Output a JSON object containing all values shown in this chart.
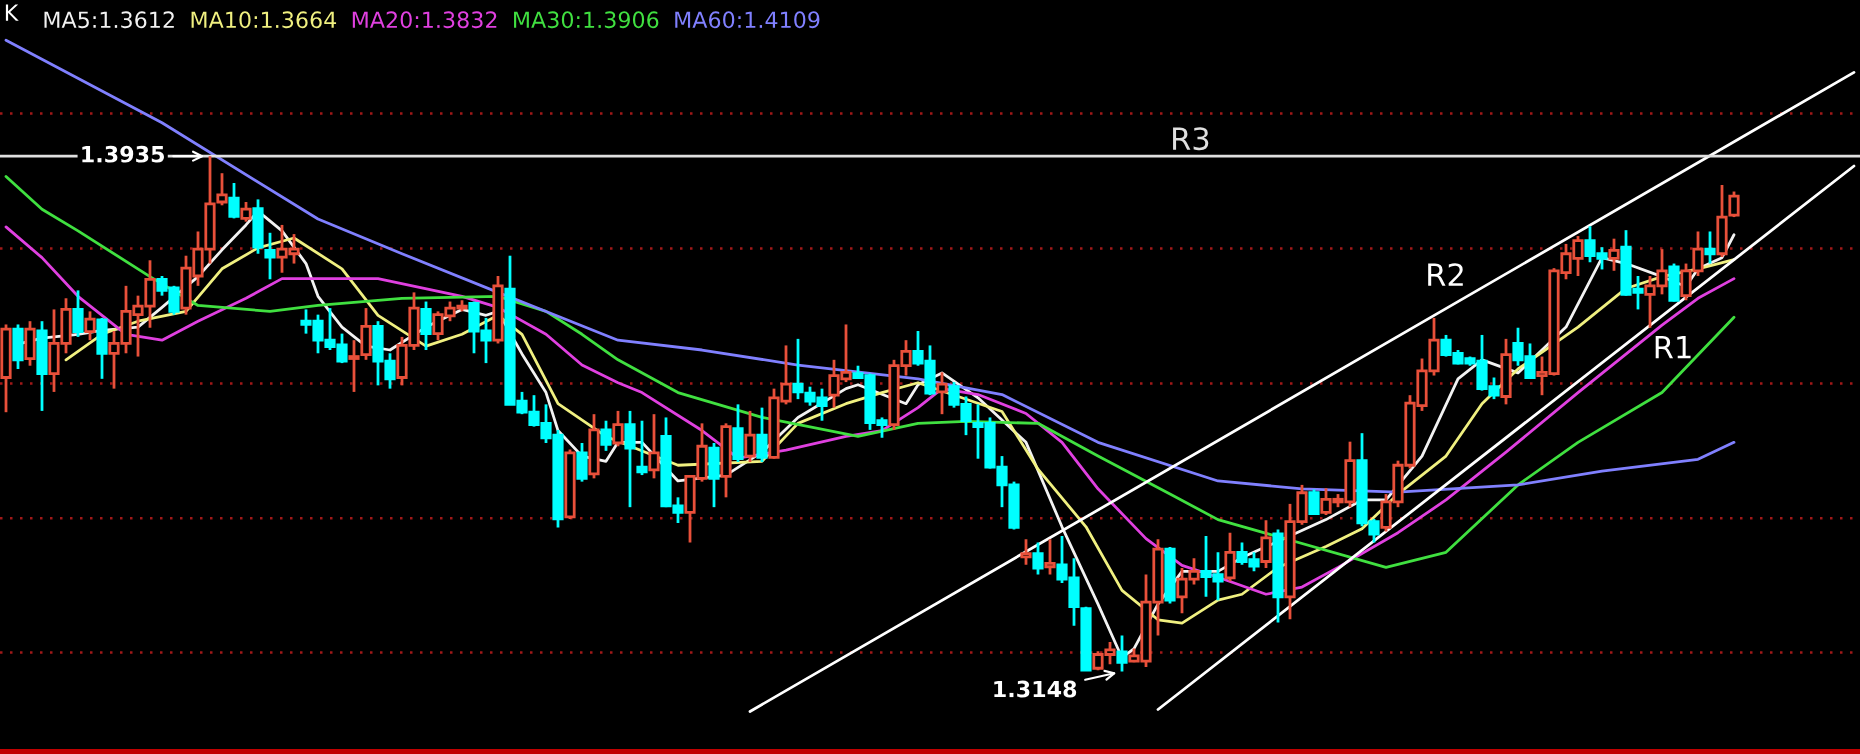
{
  "chart_data": {
    "type": "candlestick",
    "title": "K",
    "categories": [
      null,
      null,
      null,
      null,
      null,
      null,
      null,
      null,
      null,
      null,
      null,
      null,
      null,
      null,
      null,
      null,
      null,
      null,
      null,
      null,
      null,
      null,
      null,
      null,
      null,
      null,
      null,
      null,
      null,
      null,
      null,
      null,
      null,
      null,
      null,
      null,
      null,
      null,
      null,
      null,
      null,
      null,
      null,
      null,
      null,
      null,
      null,
      null,
      null,
      null,
      null,
      null,
      null,
      null,
      null,
      null,
      null,
      null,
      null,
      null,
      null,
      null,
      null,
      null,
      null,
      null,
      null,
      null,
      null,
      null,
      null,
      null,
      null,
      null,
      null,
      null,
      null,
      null,
      null,
      null,
      null,
      null,
      null,
      null,
      null,
      null,
      null,
      null,
      null,
      null,
      null,
      null,
      null,
      null,
      null,
      null,
      null,
      null,
      null,
      null,
      null,
      null,
      null,
      null,
      null,
      null,
      null,
      null,
      null,
      null,
      null,
      null,
      null,
      null,
      null,
      null,
      null,
      null,
      null,
      null,
      null,
      null,
      null,
      null,
      null,
      null,
      null,
      null,
      null,
      null,
      null,
      null,
      null,
      null,
      null,
      null,
      null,
      null,
      null,
      null,
      null,
      null,
      null,
      null,
      null,
      null,
      null,
      null,
      null,
      null,
      null,
      null,
      null,
      null,
      null
    ],
    "ohlc": [
      [
        1.3597,
        1.3678,
        1.3544,
        1.3671
      ],
      [
        1.3671,
        1.3678,
        1.361,
        1.3624
      ],
      [
        1.3626,
        1.3683,
        1.3615,
        1.3671
      ],
      [
        1.3668,
        1.3683,
        1.3546,
        1.3603
      ],
      [
        1.3603,
        1.3701,
        1.3575,
        1.3649
      ],
      [
        1.3649,
        1.3718,
        1.3634,
        1.3701
      ],
      [
        1.3701,
        1.373,
        1.3659,
        1.3667
      ],
      [
        1.3667,
        1.3698,
        1.3654,
        1.3686
      ],
      [
        1.3685,
        1.3688,
        1.3595,
        1.3634
      ],
      [
        1.3634,
        1.3668,
        1.358,
        1.3649
      ],
      [
        1.3649,
        1.3737,
        1.3634,
        1.3698
      ],
      [
        1.3693,
        1.3722,
        1.3629,
        1.3706
      ],
      [
        1.3706,
        1.3776,
        1.3673,
        1.3747
      ],
      [
        1.3747,
        1.3752,
        1.3722,
        1.373
      ],
      [
        1.3734,
        1.3737,
        1.3693,
        1.3698
      ],
      [
        1.3703,
        1.3783,
        1.3693,
        1.3764
      ],
      [
        1.3752,
        1.382,
        1.3737,
        1.3793
      ],
      [
        1.3793,
        1.3935,
        1.3771,
        1.3862
      ],
      [
        1.3865,
        1.3909,
        1.386,
        1.3876
      ],
      [
        1.3871,
        1.3894,
        1.384,
        1.3843
      ],
      [
        1.384,
        1.3865,
        1.3835,
        1.3854
      ],
      [
        1.3855,
        1.3869,
        1.3786,
        1.3796
      ],
      [
        1.3791,
        1.3818,
        1.3747,
        1.3781
      ],
      [
        1.3781,
        1.383,
        1.3757,
        1.3793
      ],
      [
        1.3786,
        1.3816,
        1.3771,
        1.3793
      ],
      [
        1.3683,
        1.3701,
        1.3664,
        1.3678
      ],
      [
        1.3683,
        1.3693,
        1.3634,
        1.3654
      ],
      [
        1.3654,
        1.3703,
        1.3639,
        1.3644
      ],
      [
        1.3647,
        1.3664,
        1.3619,
        1.3622
      ],
      [
        1.3626,
        1.3654,
        1.3575,
        1.3629
      ],
      [
        1.3632,
        1.3703,
        1.3624,
        1.3675
      ],
      [
        1.3675,
        1.3683,
        1.3585,
        1.3622
      ],
      [
        1.3622,
        1.3634,
        1.358,
        1.3595
      ],
      [
        1.3597,
        1.3659,
        1.3585,
        1.3646
      ],
      [
        1.3646,
        1.3727,
        1.3639,
        1.3703
      ],
      [
        1.3701,
        1.3713,
        1.3639,
        1.3664
      ],
      [
        1.3664,
        1.3698,
        1.3654,
        1.3693
      ],
      [
        1.3691,
        1.3713,
        1.3683,
        1.3703
      ],
      [
        1.3703,
        1.3715,
        1.3698,
        1.3706
      ],
      [
        1.371,
        1.3713,
        1.3634,
        1.3668
      ],
      [
        1.3668,
        1.3688,
        1.3619,
        1.3654
      ],
      [
        1.3654,
        1.3752,
        1.3649,
        1.3737
      ],
      [
        1.3732,
        1.3783,
        1.3556,
        1.3556
      ],
      [
        1.3561,
        1.3575,
        1.3541,
        1.3544
      ],
      [
        1.3544,
        1.357,
        1.3522,
        1.3525
      ],
      [
        1.3527,
        1.3556,
        1.3497,
        1.3505
      ],
      [
        1.3509,
        1.3517,
        1.3368,
        1.3381
      ],
      [
        1.3384,
        1.3487,
        1.3381,
        1.3482
      ],
      [
        1.3482,
        1.3497,
        1.3438,
        1.3443
      ],
      [
        1.345,
        1.3541,
        1.3443,
        1.3517
      ],
      [
        1.3517,
        1.3531,
        1.3485,
        1.3495
      ],
      [
        1.3497,
        1.3546,
        1.3492,
        1.3525
      ],
      [
        1.3525,
        1.3546,
        1.3399,
        1.3489
      ],
      [
        1.346,
        1.3531,
        1.3448,
        1.3453
      ],
      [
        1.3456,
        1.3541,
        1.3443,
        1.3482
      ],
      [
        1.3507,
        1.3536,
        1.3399,
        1.3401
      ],
      [
        1.3401,
        1.3414,
        1.3375,
        1.3391
      ],
      [
        1.3391,
        1.3448,
        1.3345,
        1.3446
      ],
      [
        1.3443,
        1.3527,
        1.3438,
        1.3492
      ],
      [
        1.3489,
        1.3497,
        1.3399,
        1.3443
      ],
      [
        1.3446,
        1.3527,
        1.3414,
        1.3522
      ],
      [
        1.3519,
        1.3556,
        1.3468,
        1.3473
      ],
      [
        1.3477,
        1.3546,
        1.3468,
        1.3509
      ],
      [
        1.3509,
        1.3551,
        1.3468,
        1.3475
      ],
      [
        1.3475,
        1.358,
        1.3473,
        1.3566
      ],
      [
        1.3561,
        1.3646,
        1.3556,
        1.3587
      ],
      [
        1.3587,
        1.3656,
        1.3564,
        1.3575
      ],
      [
        1.3573,
        1.3583,
        1.3554,
        1.3561
      ],
      [
        1.3566,
        1.358,
        1.3531,
        1.3554
      ],
      [
        1.357,
        1.3624,
        1.3551,
        1.36
      ],
      [
        1.3595,
        1.3678,
        1.359,
        1.3605
      ],
      [
        1.3603,
        1.3615,
        1.3595,
        1.3597
      ],
      [
        1.36,
        1.3603,
        1.3517,
        1.3528
      ],
      [
        1.3531,
        1.3536,
        1.3505,
        1.3525
      ],
      [
        1.3525,
        1.3624,
        1.3517,
        1.3615
      ],
      [
        1.3615,
        1.3654,
        1.36,
        1.3637
      ],
      [
        1.3637,
        1.3668,
        1.3615,
        1.3619
      ],
      [
        1.3622,
        1.3646,
        1.357,
        1.3573
      ],
      [
        1.3575,
        1.3605,
        1.3541,
        1.3587
      ],
      [
        1.3583,
        1.359,
        1.3551,
        1.3556
      ],
      [
        1.3556,
        1.3568,
        1.3509,
        1.3531
      ],
      [
        1.3527,
        1.3556,
        1.3473,
        1.3522
      ],
      [
        1.3527,
        1.3536,
        1.3458,
        1.346
      ],
      [
        1.346,
        1.3477,
        1.3399,
        1.3433
      ],
      [
        1.3433,
        1.3438,
        1.3365,
        1.3368
      ],
      [
        1.3323,
        1.335,
        1.3311,
        1.3328
      ],
      [
        1.3328,
        1.3345,
        1.3296,
        1.3306
      ],
      [
        1.3308,
        1.335,
        1.3296,
        1.3313
      ],
      [
        1.3311,
        1.3355,
        1.3283,
        1.3289
      ],
      [
        1.3291,
        1.3321,
        1.3218,
        1.3247
      ],
      [
        1.3244,
        1.3247,
        1.3149,
        1.315
      ],
      [
        1.3153,
        1.3179,
        1.315,
        1.3174
      ],
      [
        1.3174,
        1.3193,
        1.3159,
        1.3181
      ],
      [
        1.3178,
        1.3203,
        1.3148,
        1.3162
      ],
      [
        1.3164,
        1.3183,
        1.3162,
        1.3172
      ],
      [
        1.3164,
        1.3296,
        1.3155,
        1.3254
      ],
      [
        1.3254,
        1.335,
        1.3203,
        1.3335
      ],
      [
        1.3335,
        1.3338,
        1.3252,
        1.3257
      ],
      [
        1.3262,
        1.3306,
        1.3237,
        1.3289
      ],
      [
        1.3289,
        1.3321,
        1.3281,
        1.3301
      ],
      [
        1.3301,
        1.3355,
        1.3262,
        1.3293
      ],
      [
        1.3296,
        1.333,
        1.3257,
        1.3286
      ],
      [
        1.3291,
        1.336,
        1.3286,
        1.333
      ],
      [
        1.333,
        1.3345,
        1.3311,
        1.3316
      ],
      [
        1.3319,
        1.333,
        1.3301,
        1.3309
      ],
      [
        1.3316,
        1.3379,
        1.3306,
        1.3352
      ],
      [
        1.3358,
        1.3365,
        1.3223,
        1.3262
      ],
      [
        1.3262,
        1.3404,
        1.3228,
        1.3377
      ],
      [
        1.3377,
        1.3433,
        1.3372,
        1.3421
      ],
      [
        1.3421,
        1.3426,
        1.3387,
        1.3389
      ],
      [
        1.3391,
        1.3428,
        1.3387,
        1.3411
      ],
      [
        1.3407,
        1.3419,
        1.3399,
        1.3411
      ],
      [
        1.3407,
        1.3499,
        1.3399,
        1.347
      ],
      [
        1.347,
        1.3512,
        1.337,
        1.3375
      ],
      [
        1.3377,
        1.3381,
        1.3345,
        1.3358
      ],
      [
        1.3368,
        1.3419,
        1.3362,
        1.3407
      ],
      [
        1.3407,
        1.347,
        1.3399,
        1.3463
      ],
      [
        1.3463,
        1.357,
        1.3458,
        1.3558
      ],
      [
        1.3554,
        1.3626,
        1.3546,
        1.3607
      ],
      [
        1.3607,
        1.3688,
        1.36,
        1.3654
      ],
      [
        1.3654,
        1.3662,
        1.3629,
        1.3632
      ],
      [
        1.3634,
        1.3639,
        1.3617,
        1.3619
      ],
      [
        1.3626,
        1.3629,
        1.3615,
        1.3619
      ],
      [
        1.3622,
        1.3662,
        1.3577,
        1.358
      ],
      [
        1.3583,
        1.3597,
        1.3564,
        1.357
      ],
      [
        1.3568,
        1.3656,
        1.3556,
        1.3632
      ],
      [
        1.3649,
        1.3673,
        1.3615,
        1.3624
      ],
      [
        1.3629,
        1.3649,
        1.3595,
        1.3597
      ],
      [
        1.36,
        1.3629,
        1.357,
        1.3605
      ],
      [
        1.3603,
        1.3764,
        1.36,
        1.376
      ],
      [
        1.3757,
        1.3801,
        1.3747,
        1.3786
      ],
      [
        1.3779,
        1.3813,
        1.3752,
        1.3806
      ],
      [
        1.3806,
        1.3828,
        1.3773,
        1.3783
      ],
      [
        1.3786,
        1.3796,
        1.3762,
        1.3779
      ],
      [
        1.3779,
        1.3809,
        1.376,
        1.3791
      ],
      [
        1.3796,
        1.3822,
        1.3722,
        1.3724
      ],
      [
        1.3732,
        1.3752,
        1.3701,
        1.3727
      ],
      [
        1.3724,
        1.3752,
        1.3673,
        1.3737
      ],
      [
        1.3737,
        1.3793,
        1.3724,
        1.376
      ],
      [
        1.3766,
        1.3771,
        1.3713,
        1.3715
      ],
      [
        1.3722,
        1.3771,
        1.3715,
        1.376
      ],
      [
        1.376,
        1.382,
        1.3752,
        1.3793
      ],
      [
        1.3793,
        1.382,
        1.3771,
        1.3786
      ],
      [
        1.3786,
        1.3891,
        1.3781,
        1.3842
      ],
      [
        1.3845,
        1.3881,
        1.3842,
        1.3874
      ],
      null,
      null,
      null,
      null,
      null,
      null,
      null,
      null,
      null,
      null
    ],
    "colors": [
      "#e8503a",
      "#00ffff",
      "#e8503a",
      "#00ffff",
      "#e8503a",
      "#e8503a",
      "#00ffff",
      "#e8503a",
      "#00ffff",
      "#e8503a",
      "#e8503a",
      "#e8503a",
      "#e8503a",
      "#00ffff",
      "#00ffff",
      "#e8503a",
      "#e8503a",
      "#e8503a",
      "#e8503a",
      "#00ffff",
      "#e8503a",
      "#00ffff",
      "#00ffff",
      "#e8503a",
      "#e8503a",
      "#00ffff",
      "#00ffff",
      "#00ffff",
      "#00ffff",
      "#e8503a",
      "#e8503a",
      "#00ffff",
      "#00ffff",
      "#e8503a",
      "#e8503a",
      "#00ffff",
      "#e8503a",
      "#e8503a",
      "#e8503a",
      "#00ffff",
      "#00ffff",
      "#e8503a",
      "#00ffff",
      "#00ffff",
      "#00ffff",
      "#00ffff",
      "#00ffff",
      "#e8503a",
      "#00ffff",
      "#e8503a",
      "#00ffff",
      "#e8503a",
      "#00ffff",
      "#00ffff",
      "#e8503a",
      "#00ffff",
      "#00ffff",
      "#e8503a",
      "#e8503a",
      "#00ffff",
      "#e8503a",
      "#00ffff",
      "#e8503a",
      "#00ffff",
      "#e8503a",
      "#e8503a",
      "#00ffff",
      "#00ffff",
      "#00ffff",
      "#e8503a",
      "#e8503a",
      "#00ffff",
      "#00ffff",
      "#00ffff",
      "#e8503a",
      "#e8503a",
      "#00ffff",
      "#00ffff",
      "#e8503a",
      "#00ffff",
      "#00ffff",
      "#00ffff",
      "#00ffff",
      "#00ffff",
      "#00ffff",
      "#e8503a",
      "#00ffff",
      "#e8503a",
      "#00ffff",
      "#00ffff",
      "#00ffff",
      "#e8503a",
      "#e8503a",
      "#00ffff",
      "#e8503a",
      "#e8503a",
      "#e8503a",
      "#00ffff",
      "#e8503a",
      "#e8503a",
      "#00ffff",
      "#00ffff",
      "#e8503a",
      "#00ffff",
      "#00ffff",
      "#e8503a",
      "#00ffff",
      "#e8503a",
      "#e8503a",
      "#00ffff",
      "#e8503a",
      "#e8503a",
      "#e8503a",
      "#00ffff",
      "#00ffff",
      "#e8503a",
      "#e8503a",
      "#e8503a",
      "#e8503a",
      "#e8503a",
      "#00ffff",
      "#00ffff",
      "#00ffff",
      "#00ffff",
      "#00ffff",
      "#e8503a",
      "#00ffff",
      "#00ffff",
      "#e8503a",
      "#e8503a",
      "#e8503a",
      "#e8503a",
      "#00ffff",
      "#00ffff",
      "#e8503a",
      "#00ffff",
      "#00ffff",
      "#e8503a",
      "#e8503a",
      "#00ffff",
      "#e8503a",
      "#e8503a",
      "#00ffff",
      "#e8503a",
      "#e8503a",
      null,
      null,
      null,
      null,
      null,
      null,
      null,
      null,
      null,
      null
    ],
    "series": [
      {
        "type": "line",
        "name": "MA5:1.3612",
        "color": "#f2f2f2",
        "values": [
          null,
          1.3648,
          null,
          1.3657,
          null,
          null,
          1.3663,
          null,
          1.3669,
          null,
          null,
          1.3674,
          null,
          1.3704,
          null,
          null,
          1.3751,
          null,
          1.3792,
          null,
          1.383,
          1.3851,
          null,
          1.3821,
          null,
          1.3771,
          1.3721,
          null,
          1.3674,
          null,
          1.3645,
          null,
          1.3639,
          null,
          null,
          1.3674,
          null,
          null,
          1.3701,
          null,
          1.3692,
          1.3698,
          null,
          1.3633,
          null,
          1.3574,
          1.3516,
          null,
          1.3477,
          null,
          1.3469,
          1.3498,
          null,
          1.3498,
          null,
          null,
          1.3439,
          null,
          null,
          null,
          1.3448,
          null,
          null,
          1.3483,
          null,
          null,
          1.3536,
          null,
          null,
          null,
          1.358,
          1.3586,
          null,
          null,
          null,
          1.3557,
          1.3586,
          null,
          1.3604,
          null,
          null,
          1.3566,
          null,
          null,
          null,
          1.3498,
          null,
          null,
          1.3369,
          null,
          null,
          1.3251,
          null,
          1.3169,
          1.3183,
          null,
          1.3251,
          null,
          1.3301,
          null,
          null,
          1.3301,
          null,
          1.3322,
          null,
          null,
          null,
          null,
          null,
          null,
          1.338,
          null,
          null,
          1.341,
          null,
          1.341,
          null,
          null,
          1.3477,
          null,
          null,
          1.3595,
          null,
          1.3624,
          null,
          null,
          1.3604,
          null,
          null,
          null,
          1.3674,
          null,
          null,
          1.378,
          null,
          1.3771,
          null,
          null,
          1.3751,
          null,
          1.3736,
          1.3763,
          null,
          1.378,
          1.3815,
          null,
          null,
          null,
          null,
          null,
          null,
          null,
          null,
          null,
          null
        ]
      },
      {
        "type": "line",
        "name": "MA10:1.3664",
        "color": "#f0f080",
        "values": [
          null,
          null,
          null,
          null,
          null,
          1.3624,
          null,
          null,
          1.3663,
          null,
          null,
          1.3683,
          null,
          null,
          null,
          1.3698,
          null,
          null,
          1.3763,
          null,
          null,
          1.3795,
          null,
          null,
          1.381,
          null,
          null,
          null,
          1.3763,
          null,
          null,
          1.3692,
          null,
          null,
          null,
          1.3645,
          null,
          null,
          1.3663,
          null,
          null,
          1.3692,
          null,
          1.3663,
          null,
          null,
          1.3557,
          null,
          null,
          null,
          1.3507,
          null,
          null,
          null,
          null,
          null,
          1.3463,
          null,
          null,
          null,
          null,
          null,
          null,
          1.3469,
          null,
          null,
          1.3527,
          null,
          null,
          null,
          1.3557,
          null,
          null,
          1.3574,
          null,
          null,
          1.3589,
          null,
          null,
          null,
          null,
          null,
          null,
          1.3545,
          null,
          null,
          1.3457,
          null,
          null,
          null,
          1.3369,
          null,
          null,
          1.3272,
          null,
          null,
          1.3227,
          null,
          1.3222,
          null,
          null,
          1.3257,
          null,
          1.3266,
          null,
          null,
          1.3307,
          null,
          null,
          null,
          1.3339,
          null,
          null,
          1.3366,
          null,
          null,
          1.3419,
          null,
          null,
          null,
          1.3477,
          null,
          null,
          1.3557,
          null,
          null,
          1.361,
          null,
          null,
          null,
          null,
          1.3674,
          null,
          null,
          null,
          1.3733,
          null,
          null,
          1.3751,
          null,
          null,
          1.3763,
          null,
          null,
          1.3777,
          null,
          null,
          null,
          null,
          null,
          null,
          null,
          null,
          null,
          null
        ]
      },
      {
        "type": "line",
        "name": "MA20:1.3832",
        "color": "#e040e0",
        "values": [
          1.3827,
          null,
          null,
          1.378,
          null,
          null,
          1.3721,
          null,
          null,
          null,
          1.3663,
          null,
          null,
          1.3654,
          null,
          null,
          1.3683,
          null,
          null,
          null,
          1.3718,
          null,
          null,
          1.3748,
          null,
          null,
          null,
          null,
          null,
          null,
          null,
          1.3748,
          null,
          null,
          null,
          null,
          null,
          null,
          1.3721,
          null,
          null,
          1.3704,
          null,
          null,
          null,
          1.3663,
          null,
          null,
          1.3616,
          null,
          null,
          1.3589,
          null,
          1.3574,
          null,
          null,
          null,
          null,
          1.3516,
          null,
          null,
          1.3474,
          null,
          null,
          null,
          1.3486,
          null,
          null,
          null,
          null,
          1.3507,
          null,
          null,
          1.3516,
          null,
          null,
          1.3551,
          null,
          1.358,
          null,
          null,
          1.3571,
          null,
          null,
          null,
          1.3542,
          null,
          null,
          1.3498,
          null,
          null,
          1.3427,
          null,
          null,
          null,
          1.3351,
          null,
          null,
          1.331,
          null,
          null,
          1.3292,
          null,
          null,
          null,
          1.3266,
          null,
          null,
          1.3277,
          null,
          null,
          1.3307,
          null,
          null,
          null,
          null,
          1.336,
          null,
          null,
          null,
          1.341,
          null,
          null,
          null,
          null,
          1.3483,
          null,
          null,
          null,
          null,
          null,
          1.3574,
          null,
          null,
          null,
          null,
          null,
          null,
          1.3677,
          null,
          null,
          1.3718,
          null,
          null,
          1.3748,
          null,
          null,
          null,
          null,
          null,
          null,
          null,
          null,
          null,
          null
        ]
      },
      {
        "type": "line",
        "name": "MA30:1.3906",
        "color": "#40e040",
        "values": [
          1.3904,
          null,
          null,
          1.3854,
          null,
          null,
          1.3821,
          null,
          null,
          null,
          null,
          null,
          1.3751,
          null,
          null,
          null,
          1.3707,
          null,
          null,
          null,
          null,
          null,
          1.3698,
          null,
          null,
          null,
          1.3707,
          null,
          null,
          null,
          null,
          null,
          null,
          1.3718,
          null,
          null,
          null,
          null,
          null,
          null,
          null,
          1.3721,
          null,
          null,
          null,
          1.3698,
          null,
          null,
          1.3663,
          null,
          null,
          1.3624,
          null,
          null,
          null,
          null,
          1.3574,
          null,
          null,
          null,
          null,
          null,
          null,
          1.3536,
          null,
          null,
          null,
          null,
          null,
          null,
          null,
          1.3507,
          null,
          null,
          null,
          null,
          1.3527,
          null,
          null,
          null,
          1.353,
          null,
          null,
          null,
          null,
          null,
          1.3527,
          null,
          null,
          null,
          null,
          1.3477,
          null,
          null,
          null,
          null,
          null,
          1.3419,
          null,
          null,
          null,
          1.338,
          null,
          null,
          null,
          null,
          null,
          null,
          null,
          null,
          null,
          null,
          null,
          null,
          null,
          1.3307,
          null,
          null,
          null,
          null,
          1.333,
          null,
          null,
          null,
          null,
          null,
          1.3433,
          null,
          null,
          null,
          null,
          1.3498,
          null,
          null,
          null,
          null,
          null,
          null,
          1.3574,
          null,
          null,
          null,
          null,
          null,
          1.3689,
          null,
          null,
          null,
          null,
          null,
          null,
          null,
          null,
          null,
          null
        ]
      },
      {
        "type": "line",
        "name": "MA60:1.4109",
        "color": "#8080ff",
        "values": [
          1.4112,
          null,
          null,
          null,
          null,
          null,
          null,
          null,
          null,
          null,
          null,
          null,
          null,
          1.3986,
          null,
          null,
          null,
          null,
          null,
          null,
          null,
          null,
          null,
          null,
          null,
          null,
          1.3839,
          null,
          null,
          null,
          null,
          null,
          null,
          1.3786,
          null,
          null,
          null,
          null,
          null,
          null,
          null,
          1.3727,
          null,
          null,
          null,
          null,
          null,
          null,
          null,
          null,
          null,
          1.3654,
          null,
          null,
          null,
          null,
          null,
          null,
          1.3639,
          null,
          null,
          null,
          null,
          null,
          null,
          null,
          1.3616,
          null,
          null,
          null,
          null,
          null,
          null,
          null,
          null,
          null,
          1.3595,
          null,
          null,
          null,
          null,
          null,
          null,
          1.3571,
          null,
          null,
          null,
          null,
          null,
          null,
          null,
          1.3498,
          null,
          null,
          null,
          null,
          null,
          null,
          null,
          null,
          null,
          1.3439,
          null,
          null,
          null,
          null,
          null,
          null,
          1.3427,
          null,
          null,
          null,
          null,
          null,
          null,
          null,
          1.3422,
          null,
          null,
          null,
          null,
          null,
          null,
          null,
          null,
          null,
          1.3433,
          null,
          null,
          null,
          null,
          null,
          null,
          1.3454,
          null,
          null,
          null,
          null,
          null,
          null,
          null,
          1.3472,
          null,
          null,
          1.3498,
          null,
          null,
          null,
          null,
          null,
          null,
          null,
          null,
          null,
          null
        ]
      },
      {
        "type": "line",
        "name": "R2",
        "color": "#ffffff",
        "values": [
          null,
          null,
          null,
          null,
          null,
          null,
          null,
          null,
          null,
          null,
          null,
          null,
          null,
          null,
          null,
          null,
          null,
          null,
          null,
          null,
          null,
          null,
          null,
          null,
          null,
          null,
          null,
          null,
          null,
          null,
          null,
          null,
          null,
          null,
          null,
          null,
          null,
          null,
          null,
          null,
          null,
          null,
          null,
          null,
          null,
          null,
          null,
          null,
          null,
          null,
          null,
          null,
          null,
          null,
          null,
          null,
          null,
          null,
          null,
          null,
          null,
          null,
          1.3087,
          null,
          null,
          null,
          null,
          null,
          null,
          null,
          null,
          null,
          null,
          null,
          null,
          null,
          null,
          null,
          null,
          null,
          null,
          null,
          null,
          null,
          null,
          null,
          null,
          null,
          null,
          null,
          null,
          null,
          null,
          null,
          null,
          null,
          null,
          null,
          null,
          null,
          null,
          null,
          null,
          null,
          null,
          null,
          null,
          null,
          null,
          null,
          null,
          null,
          null,
          null,
          null,
          null,
          null,
          null,
          null,
          null,
          null,
          null,
          null,
          null,
          null,
          null,
          null,
          null,
          null,
          null,
          null,
          null,
          null,
          null,
          null,
          null,
          null,
          null,
          null,
          null,
          null,
          null,
          null,
          null,
          null,
          null,
          null,
          null,
          null,
          null,
          null,
          null,
          null,
          null,
          1.4063
        ]
      },
      {
        "type": "line",
        "name": "R1",
        "color": "#ffffff",
        "values": [
          null,
          null,
          null,
          null,
          null,
          null,
          null,
          null,
          null,
          null,
          null,
          null,
          null,
          null,
          null,
          null,
          null,
          null,
          null,
          null,
          null,
          null,
          null,
          null,
          null,
          null,
          null,
          null,
          null,
          null,
          null,
          null,
          null,
          null,
          null,
          null,
          null,
          null,
          null,
          null,
          null,
          null,
          null,
          null,
          null,
          null,
          null,
          null,
          null,
          null,
          null,
          null,
          null,
          null,
          null,
          null,
          null,
          null,
          null,
          null,
          null,
          null,
          null,
          null,
          null,
          null,
          null,
          null,
          null,
          null,
          null,
          null,
          null,
          null,
          null,
          null,
          null,
          null,
          null,
          null,
          null,
          null,
          null,
          null,
          null,
          null,
          null,
          null,
          null,
          null,
          null,
          null,
          null,
          null,
          null,
          null,
          1.309,
          null,
          null,
          null,
          null,
          null,
          null,
          null,
          null,
          null,
          null,
          null,
          null,
          null,
          null,
          null,
          null,
          null,
          null,
          null,
          null,
          null,
          null,
          null,
          null,
          null,
          null,
          null,
          null,
          null,
          null,
          null,
          null,
          null,
          null,
          null,
          null,
          null,
          null,
          null,
          null,
          null,
          null,
          null,
          null,
          null,
          null,
          null,
          null,
          null,
          null,
          null,
          null,
          null,
          null,
          null,
          null,
          null,
          1.392
        ]
      }
    ],
    "ref_lines": [
      {
        "axis": "y",
        "value": 1.3935,
        "label": "R3",
        "color": "#e0e0e0"
      }
    ],
    "annotations": [
      "1.3935",
      "1.3148"
    ],
    "yticks": [
      {
        "value": 1.4,
        "label": null
      },
      {
        "value": 1.3794,
        "label": null
      },
      {
        "value": 1.3588,
        "label": null
      },
      {
        "value": 1.3382,
        "label": null
      },
      {
        "value": 1.3177,
        "label": null
      }
    ],
    "grid": "y",
    "legend": "top left"
  }
}
